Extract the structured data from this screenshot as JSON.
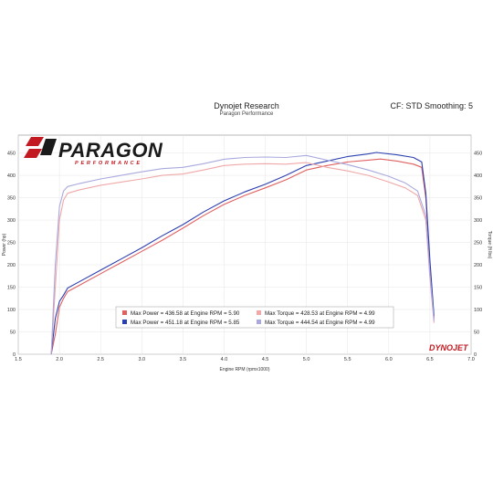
{
  "header": {
    "title": "Dynojet Research",
    "subtitle": "Paragon Performance",
    "settings": "CF: STD Smoothing: 5"
  },
  "logo": {
    "word": "PARAGON",
    "sub": "PERFORMANCE",
    "brand_color": "#c21a20"
  },
  "watermark": {
    "brand": "DYNOJET"
  },
  "chart_data": {
    "type": "line",
    "xlabel": "Engine RPM (rpmx1000)",
    "ylabel_left": "Power (hp)",
    "ylabel_right": "Torque (ft lbs)",
    "xlim": [
      1.5,
      7.0
    ],
    "ylim": [
      0,
      490
    ],
    "x_ticks": [
      "1.5",
      "2.0",
      "2.5",
      "3.0",
      "3.5",
      "4.0",
      "4.5",
      "5.0",
      "5.5",
      "6.0",
      "6.5",
      "7.0"
    ],
    "y_ticks": [
      "0",
      "50",
      "100",
      "150",
      "200",
      "250",
      "300",
      "350",
      "400",
      "450"
    ],
    "grid": true,
    "series": [
      {
        "kind": "power",
        "color": "#e06060",
        "x": [
          1.9,
          1.95,
          2.0,
          2.05,
          2.1,
          2.25,
          2.5,
          2.75,
          3.0,
          3.25,
          3.5,
          3.75,
          4.0,
          4.25,
          4.5,
          4.75,
          5.0,
          5.25,
          5.5,
          5.75,
          5.9,
          6.1,
          6.3,
          6.4,
          6.45,
          6.5,
          6.55
        ],
        "values": [
          0,
          45,
          105,
          125,
          140,
          155,
          180,
          205,
          230,
          255,
          282,
          310,
          335,
          355,
          372,
          390,
          412,
          422,
          430,
          434,
          436.58,
          432,
          425,
          418,
          350,
          200,
          80
        ]
      },
      {
        "kind": "power",
        "color": "#2c3fb0",
        "x": [
          1.9,
          1.95,
          2.0,
          2.05,
          2.1,
          2.25,
          2.5,
          2.75,
          3.0,
          3.25,
          3.5,
          3.75,
          4.0,
          4.25,
          4.5,
          4.75,
          5.0,
          5.25,
          5.5,
          5.75,
          5.85,
          6.1,
          6.3,
          6.4,
          6.45,
          6.5,
          6.55
        ],
        "values": [
          0,
          80,
          118,
          132,
          148,
          163,
          188,
          213,
          238,
          265,
          290,
          318,
          343,
          363,
          380,
          400,
          422,
          432,
          442,
          448,
          451.18,
          446,
          440,
          430,
          360,
          210,
          85
        ]
      },
      {
        "kind": "torque",
        "color": "#f0a8a8",
        "x": [
          1.9,
          1.95,
          2.0,
          2.05,
          2.1,
          2.25,
          2.5,
          2.75,
          3.0,
          3.25,
          3.5,
          3.75,
          4.0,
          4.25,
          4.5,
          4.75,
          5.0,
          5.25,
          5.5,
          5.75,
          6.0,
          6.2,
          6.35,
          6.45,
          6.5,
          6.55
        ],
        "values": [
          0,
          150,
          300,
          345,
          360,
          368,
          378,
          385,
          392,
          400,
          403,
          412,
          422,
          425,
          426,
          425,
          428.53,
          418,
          410,
          400,
          385,
          372,
          355,
          300,
          170,
          70
        ]
      },
      {
        "kind": "torque",
        "color": "#a9a9de",
        "x": [
          1.9,
          1.95,
          2.0,
          2.05,
          2.1,
          2.25,
          2.5,
          2.75,
          3.0,
          3.25,
          3.5,
          3.75,
          4.0,
          4.25,
          4.5,
          4.75,
          5.0,
          5.25,
          5.5,
          5.75,
          6.0,
          6.2,
          6.35,
          6.45,
          6.5,
          6.55
        ],
        "values": [
          0,
          200,
          330,
          365,
          375,
          382,
          392,
          400,
          408,
          415,
          418,
          426,
          436,
          440,
          441,
          440,
          444.54,
          434,
          424,
          412,
          398,
          383,
          365,
          310,
          180,
          75
        ]
      }
    ],
    "legend": [
      {
        "color": "#e06060",
        "text": "Max Power = 436.58 at Engine RPM = 5.90"
      },
      {
        "color": "#f0a8a8",
        "text": "Max Torque = 428.53 at Engine RPM = 4.99"
      },
      {
        "color": "#2c3fb0",
        "text": "Max Power = 451.18 at Engine RPM = 5.85"
      },
      {
        "color": "#a9a9de",
        "text": "Max Torque = 444.54 at Engine RPM = 4.99"
      }
    ]
  }
}
